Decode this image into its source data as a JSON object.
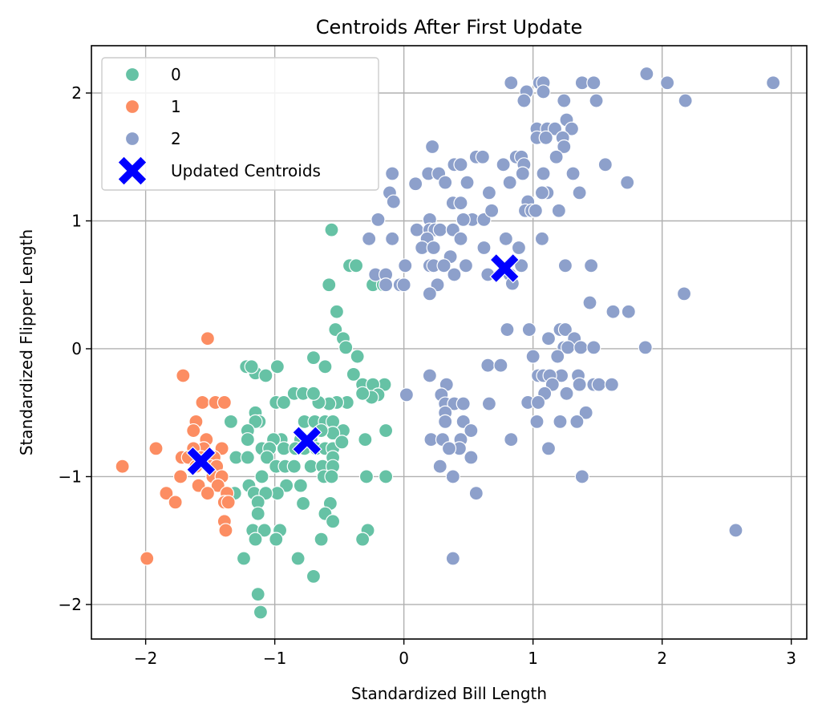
{
  "chart_data": {
    "type": "scatter",
    "title": "Centroids After First Update",
    "xlabel": "Standardized Bill Length",
    "ylabel": "Standardized Flipper Length",
    "xlim": [
      -2.42,
      3.12
    ],
    "ylim": [
      -2.27,
      2.37
    ],
    "xticks": [
      -2,
      -1,
      0,
      1,
      2,
      3
    ],
    "yticks": [
      -2,
      -1,
      0,
      1,
      2
    ],
    "xtick_labels": [
      "−2",
      "−1",
      "0",
      "1",
      "2",
      "3"
    ],
    "ytick_labels": [
      "−2",
      "−1",
      "0",
      "1",
      "2"
    ],
    "grid": true,
    "legend_position": "top-left",
    "series": [
      {
        "name": "0",
        "color": "#66c2a5",
        "marker": "circle",
        "points": [
          [
            -0.56,
            0.93
          ],
          [
            -0.42,
            0.65
          ],
          [
            -0.37,
            0.65
          ],
          [
            -0.58,
            0.5
          ],
          [
            -0.52,
            0.29
          ],
          [
            -0.53,
            0.15
          ],
          [
            -0.47,
            0.08
          ],
          [
            -0.45,
            0.01
          ],
          [
            -0.36,
            -0.06
          ],
          [
            -0.39,
            -0.2
          ],
          [
            -0.24,
            0.5
          ],
          [
            -0.16,
            0.5
          ],
          [
            -0.61,
            -0.14
          ],
          [
            -0.7,
            -0.07
          ],
          [
            -0.98,
            -0.14
          ],
          [
            -1.22,
            -0.14
          ],
          [
            -1.15,
            -0.19
          ],
          [
            -1.07,
            -0.21
          ],
          [
            -1.18,
            -0.14
          ],
          [
            -0.32,
            -0.28
          ],
          [
            -0.15,
            -0.28
          ],
          [
            -0.24,
            -0.28
          ],
          [
            -0.2,
            -0.36
          ],
          [
            -0.25,
            -0.38
          ],
          [
            -0.32,
            -0.35
          ],
          [
            -0.44,
            -0.42
          ],
          [
            -0.52,
            -0.42
          ],
          [
            -0.58,
            -0.43
          ],
          [
            -0.66,
            -0.42
          ],
          [
            -0.85,
            -0.35
          ],
          [
            -0.78,
            -0.35
          ],
          [
            -0.7,
            -0.35
          ],
          [
            -0.99,
            -0.42
          ],
          [
            -0.93,
            -0.42
          ],
          [
            -1.15,
            -0.5
          ],
          [
            -1.34,
            -0.57
          ],
          [
            -1.12,
            -0.57
          ],
          [
            -1.15,
            -0.57
          ],
          [
            -0.77,
            -0.57
          ],
          [
            -0.69,
            -0.57
          ],
          [
            -0.61,
            -0.57
          ],
          [
            -0.55,
            -0.57
          ],
          [
            -0.47,
            -0.64
          ],
          [
            -0.55,
            -0.66
          ],
          [
            -0.64,
            -0.64
          ],
          [
            -0.3,
            -0.71
          ],
          [
            -0.14,
            -0.64
          ],
          [
            -0.72,
            -0.71
          ],
          [
            -0.8,
            -0.71
          ],
          [
            -0.95,
            -0.71
          ],
          [
            -1.01,
            -0.71
          ],
          [
            -1.21,
            -0.64
          ],
          [
            -1.21,
            -0.71
          ],
          [
            -1.1,
            -0.78
          ],
          [
            -1.04,
            -0.78
          ],
          [
            -0.93,
            -0.78
          ],
          [
            -0.84,
            -0.78
          ],
          [
            -0.77,
            -0.78
          ],
          [
            -0.68,
            -0.78
          ],
          [
            -0.61,
            -0.78
          ],
          [
            -0.55,
            -0.78
          ],
          [
            -0.48,
            -0.73
          ],
          [
            -0.55,
            -0.85
          ],
          [
            -1.3,
            -0.85
          ],
          [
            -1.21,
            -0.85
          ],
          [
            -1.06,
            -0.85
          ],
          [
            -0.99,
            -0.92
          ],
          [
            -0.92,
            -0.92
          ],
          [
            -0.85,
            -0.92
          ],
          [
            -0.72,
            -0.92
          ],
          [
            -0.63,
            -0.92
          ],
          [
            -0.55,
            -0.92
          ],
          [
            -1.1,
            -1.0
          ],
          [
            -0.62,
            -1.0
          ],
          [
            -0.56,
            -1.0
          ],
          [
            -0.29,
            -1.0
          ],
          [
            -0.14,
            -1.0
          ],
          [
            -1.2,
            -1.07
          ],
          [
            -0.91,
            -1.07
          ],
          [
            -0.8,
            -1.07
          ],
          [
            -0.98,
            -1.13
          ],
          [
            -1.31,
            -1.13
          ],
          [
            -1.16,
            -1.13
          ],
          [
            -1.07,
            -1.13
          ],
          [
            -1.13,
            -1.2
          ],
          [
            -0.78,
            -1.21
          ],
          [
            -0.57,
            -1.21
          ],
          [
            -1.13,
            -1.29
          ],
          [
            -0.61,
            -1.29
          ],
          [
            -0.55,
            -1.35
          ],
          [
            -1.17,
            -1.42
          ],
          [
            -1.08,
            -1.42
          ],
          [
            -0.96,
            -1.42
          ],
          [
            -0.28,
            -1.42
          ],
          [
            -0.99,
            -1.49
          ],
          [
            -1.15,
            -1.49
          ],
          [
            -0.64,
            -1.49
          ],
          [
            -0.32,
            -1.49
          ],
          [
            -1.24,
            -1.64
          ],
          [
            -0.82,
            -1.64
          ],
          [
            -0.7,
            -1.78
          ],
          [
            -1.13,
            -1.92
          ],
          [
            -1.11,
            -2.06
          ]
        ]
      },
      {
        "name": "1",
        "color": "#fc8d62",
        "marker": "circle",
        "points": [
          [
            -1.52,
            0.08
          ],
          [
            -1.71,
            -0.21
          ],
          [
            -1.56,
            -0.42
          ],
          [
            -1.46,
            -0.42
          ],
          [
            -1.39,
            -0.42
          ],
          [
            -1.61,
            -0.57
          ],
          [
            -1.63,
            -0.64
          ],
          [
            -1.53,
            -0.71
          ],
          [
            -1.55,
            -0.78
          ],
          [
            -1.63,
            -0.78
          ],
          [
            -1.41,
            -0.78
          ],
          [
            -1.92,
            -0.78
          ],
          [
            -1.72,
            -0.85
          ],
          [
            -1.67,
            -0.85
          ],
          [
            -1.57,
            -0.85
          ],
          [
            -1.47,
            -0.85
          ],
          [
            -1.61,
            -0.92
          ],
          [
            -1.5,
            -0.92
          ],
          [
            -1.45,
            -0.92
          ],
          [
            -1.73,
            -1.0
          ],
          [
            -1.48,
            -1.0
          ],
          [
            -1.41,
            -1.0
          ],
          [
            -1.59,
            -1.07
          ],
          [
            -1.44,
            -1.07
          ],
          [
            -1.52,
            -1.13
          ],
          [
            -1.37,
            -1.13
          ],
          [
            -1.84,
            -1.13
          ],
          [
            -1.77,
            -1.2
          ],
          [
            -1.39,
            -1.2
          ],
          [
            -1.36,
            -1.2
          ],
          [
            -1.39,
            -1.35
          ],
          [
            -1.38,
            -1.42
          ],
          [
            -2.18,
            -0.92
          ],
          [
            -1.99,
            -1.64
          ]
        ]
      },
      {
        "name": "2",
        "color": "#8da0cb",
        "marker": "circle",
        "points": [
          [
            0.83,
            2.08
          ],
          [
            1.05,
            2.08
          ],
          [
            1.08,
            2.08
          ],
          [
            1.38,
            2.08
          ],
          [
            1.47,
            2.08
          ],
          [
            1.88,
            2.15
          ],
          [
            2.04,
            2.08
          ],
          [
            2.86,
            2.08
          ],
          [
            0.95,
            2.01
          ],
          [
            1.08,
            2.01
          ],
          [
            1.49,
            1.94
          ],
          [
            1.24,
            1.94
          ],
          [
            0.93,
            1.94
          ],
          [
            2.18,
            1.94
          ],
          [
            1.26,
            1.79
          ],
          [
            1.03,
            1.72
          ],
          [
            1.11,
            1.72
          ],
          [
            1.17,
            1.72
          ],
          [
            1.3,
            1.72
          ],
          [
            1.03,
            1.65
          ],
          [
            1.1,
            1.65
          ],
          [
            1.23,
            1.65
          ],
          [
            1.24,
            1.58
          ],
          [
            0.22,
            1.58
          ],
          [
            0.56,
            1.5
          ],
          [
            0.61,
            1.5
          ],
          [
            0.87,
            1.5
          ],
          [
            0.91,
            1.5
          ],
          [
            1.18,
            1.5
          ],
          [
            0.39,
            1.44
          ],
          [
            0.44,
            1.44
          ],
          [
            0.77,
            1.44
          ],
          [
            0.93,
            1.44
          ],
          [
            1.56,
            1.44
          ],
          [
            -0.09,
            1.37
          ],
          [
            0.19,
            1.37
          ],
          [
            0.27,
            1.37
          ],
          [
            0.92,
            1.37
          ],
          [
            1.08,
            1.37
          ],
          [
            1.31,
            1.37
          ],
          [
            0.32,
            1.3
          ],
          [
            0.49,
            1.3
          ],
          [
            0.82,
            1.3
          ],
          [
            1.73,
            1.3
          ],
          [
            0.09,
            1.29
          ],
          [
            -0.11,
            1.22
          ],
          [
            0.66,
            1.22
          ],
          [
            1.11,
            1.22
          ],
          [
            1.07,
            1.22
          ],
          [
            1.36,
            1.22
          ],
          [
            -0.08,
            1.15
          ],
          [
            0.38,
            1.14
          ],
          [
            0.44,
            1.14
          ],
          [
            0.96,
            1.15
          ],
          [
            0.2,
            1.01
          ],
          [
            0.53,
            1.01
          ],
          [
            0.46,
            1.01
          ],
          [
            0.62,
            1.01
          ],
          [
            0.94,
            1.08
          ],
          [
            0.99,
            1.08
          ],
          [
            1.02,
            1.08
          ],
          [
            1.2,
            1.08
          ],
          [
            0.68,
            1.08
          ],
          [
            -0.2,
            1.01
          ],
          [
            0.1,
            0.93
          ],
          [
            0.2,
            0.93
          ],
          [
            0.24,
            0.93
          ],
          [
            0.28,
            0.93
          ],
          [
            0.38,
            0.93
          ],
          [
            0.44,
            0.86
          ],
          [
            0.79,
            0.86
          ],
          [
            1.07,
            0.86
          ],
          [
            -0.27,
            0.86
          ],
          [
            -0.09,
            0.86
          ],
          [
            0.18,
            0.86
          ],
          [
            0.14,
            0.79
          ],
          [
            0.23,
            0.79
          ],
          [
            0.62,
            0.79
          ],
          [
            0.89,
            0.79
          ],
          [
            0.36,
            0.72
          ],
          [
            -0.22,
            0.58
          ],
          [
            -0.14,
            0.58
          ],
          [
            0.01,
            0.65
          ],
          [
            0.2,
            0.65
          ],
          [
            0.23,
            0.65
          ],
          [
            0.31,
            0.65
          ],
          [
            0.48,
            0.65
          ],
          [
            0.91,
            0.65
          ],
          [
            1.25,
            0.65
          ],
          [
            1.45,
            0.65
          ],
          [
            0.65,
            0.58
          ],
          [
            0.39,
            0.58
          ],
          [
            0.82,
            0.58
          ],
          [
            0.26,
            0.5
          ],
          [
            -0.14,
            0.5
          ],
          [
            -0.03,
            0.5
          ],
          [
            0.0,
            0.5
          ],
          [
            0.84,
            0.51
          ],
          [
            0.2,
            0.43
          ],
          [
            1.44,
            0.36
          ],
          [
            1.62,
            0.29
          ],
          [
            1.74,
            0.29
          ],
          [
            2.17,
            0.43
          ],
          [
            0.8,
            0.15
          ],
          [
            0.97,
            0.15
          ],
          [
            1.21,
            0.15
          ],
          [
            1.25,
            0.15
          ],
          [
            1.32,
            0.08
          ],
          [
            1.12,
            0.08
          ],
          [
            1.24,
            0.01
          ],
          [
            1.27,
            0.01
          ],
          [
            1.37,
            0.01
          ],
          [
            1.47,
            0.01
          ],
          [
            1.87,
            0.01
          ],
          [
            1.0,
            -0.06
          ],
          [
            1.19,
            -0.06
          ],
          [
            0.65,
            -0.13
          ],
          [
            0.75,
            -0.13
          ],
          [
            1.22,
            -0.21
          ],
          [
            1.35,
            -0.21
          ],
          [
            1.04,
            -0.21
          ],
          [
            1.08,
            -0.21
          ],
          [
            1.13,
            -0.21
          ],
          [
            0.2,
            -0.21
          ],
          [
            0.33,
            -0.28
          ],
          [
            1.15,
            -0.28
          ],
          [
            1.36,
            -0.28
          ],
          [
            1.47,
            -0.28
          ],
          [
            1.51,
            -0.28
          ],
          [
            1.61,
            -0.28
          ],
          [
            1.09,
            -0.35
          ],
          [
            1.26,
            -0.35
          ],
          [
            0.02,
            -0.36
          ],
          [
            0.29,
            -0.36
          ],
          [
            0.32,
            -0.43
          ],
          [
            0.39,
            -0.43
          ],
          [
            0.46,
            -0.43
          ],
          [
            0.66,
            -0.43
          ],
          [
            0.96,
            -0.42
          ],
          [
            1.04,
            -0.42
          ],
          [
            0.32,
            -0.5
          ],
          [
            1.41,
            -0.5
          ],
          [
            0.32,
            -0.57
          ],
          [
            0.46,
            -0.57
          ],
          [
            1.03,
            -0.57
          ],
          [
            1.21,
            -0.57
          ],
          [
            1.34,
            -0.57
          ],
          [
            0.52,
            -0.64
          ],
          [
            0.21,
            -0.71
          ],
          [
            0.3,
            -0.71
          ],
          [
            0.44,
            -0.71
          ],
          [
            0.83,
            -0.71
          ],
          [
            0.43,
            -0.78
          ],
          [
            0.35,
            -0.78
          ],
          [
            1.12,
            -0.78
          ],
          [
            0.52,
            -0.85
          ],
          [
            0.28,
            -0.92
          ],
          [
            0.38,
            -1.0
          ],
          [
            1.38,
            -1.0
          ],
          [
            0.56,
            -1.13
          ],
          [
            0.38,
            -1.64
          ],
          [
            2.57,
            -1.42
          ]
        ]
      }
    ],
    "centroids": {
      "name": "Updated Centroids",
      "color": "#0000ff",
      "marker": "X",
      "points": [
        [
          0.78,
          0.63
        ],
        [
          -0.75,
          -0.72
        ],
        [
          -1.57,
          -0.88
        ]
      ]
    }
  }
}
